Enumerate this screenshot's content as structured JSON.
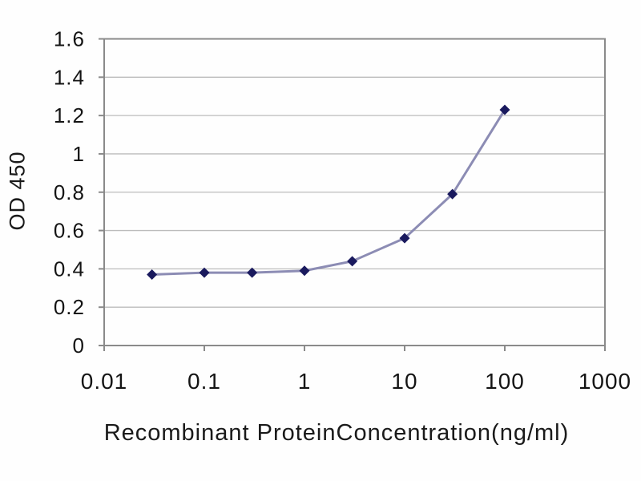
{
  "chart_data": {
    "type": "line",
    "title": "",
    "xlabel": "Recombinant ProteinConcentration(ng/ml)",
    "ylabel": "OD 450",
    "x_scale": "log",
    "xlim": [
      0.01,
      1000
    ],
    "ylim": [
      0,
      1.6
    ],
    "x_ticks": [
      0.01,
      0.1,
      1,
      10,
      100,
      1000
    ],
    "x_tick_labels": [
      "0.01",
      "0.1",
      "1",
      "10",
      "100",
      "1000"
    ],
    "y_ticks": [
      0,
      0.2,
      0.4,
      0.6,
      0.8,
      1,
      1.2,
      1.4,
      1.6
    ],
    "y_tick_labels": [
      "0",
      "0.2",
      "0.4",
      "0.6",
      "0.8",
      "1",
      "1.2",
      "1.4",
      "1.6"
    ],
    "grid": "horizontal",
    "legend_position": "none",
    "series": [
      {
        "name": "OD 450",
        "marker": "diamond",
        "x": [
          0.03,
          0.1,
          0.3,
          1,
          3,
          10,
          30,
          100
        ],
        "y": [
          0.37,
          0.38,
          0.38,
          0.39,
          0.44,
          0.56,
          0.79,
          1.23
        ]
      }
    ],
    "colors": {
      "line": "#8c8cb4",
      "marker": "#1a1a5e",
      "grid": "#bcbcbc",
      "frame": "#8a8a8a",
      "text": "#141414",
      "background": "#ffffff"
    }
  }
}
